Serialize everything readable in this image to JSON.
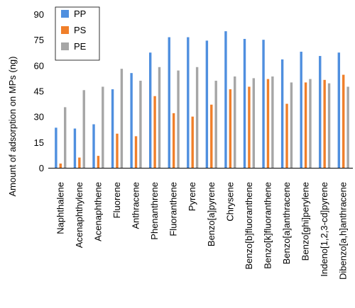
{
  "chart_data": {
    "type": "bar",
    "ylabel": "Amount of adsorption on MPs (ng)",
    "xlabel": "",
    "ylim": [
      0,
      90
    ],
    "yticks": [
      "0",
      "15",
      "30",
      "45",
      "60",
      "75",
      "90"
    ],
    "grid": false,
    "legend_position": "top-left",
    "categories": [
      "Naphthalene",
      "Acenaphthylene",
      "Acenaphthene",
      "Fluorene",
      "Anthracene",
      "Phenanthrene",
      "Fluoranthene",
      "Pyrene",
      "Benzo[a]pyrene",
      "Chrysene",
      "Benzo[b]fluoranthene",
      "Benzo[k]fluoranthene",
      "Benzo[a]anthracene",
      "Benzo[ghi]perylene",
      "Indeno[1,2,3-cd]pyrene",
      "Dibenzo[a,h]anthracene"
    ],
    "series": [
      {
        "name": "PP",
        "color": "#4f8fdf",
        "values": [
          23.5,
          23,
          25.5,
          46,
          55.5,
          67.5,
          76.5,
          76.5,
          74.5,
          80,
          75.5,
          75,
          63.5,
          68,
          65.5,
          67.5
        ]
      },
      {
        "name": "PS",
        "color": "#f07f2a",
        "values": [
          2.5,
          6,
          7,
          20,
          18.5,
          42,
          32,
          30,
          37,
          46,
          47.5,
          52,
          37.5,
          50,
          51.5,
          54.5
        ]
      },
      {
        "name": "PE",
        "color": "#a6a6a6",
        "values": [
          35.5,
          45.5,
          47.5,
          58,
          51,
          59,
          57,
          59,
          51,
          53.5,
          52.5,
          53.5,
          50,
          52,
          49.5,
          47.5
        ]
      }
    ]
  }
}
